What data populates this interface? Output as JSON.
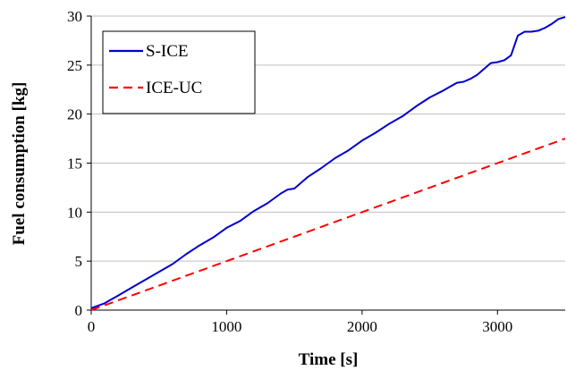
{
  "chart_data": {
    "type": "line",
    "title": "",
    "xlabel": "Time [s]",
    "ylabel": "Fuel consumption [kg]",
    "xlim": [
      0,
      3500
    ],
    "ylim": [
      0,
      30
    ],
    "xticks": [
      0,
      1000,
      2000,
      3000
    ],
    "yticks": [
      0,
      5,
      10,
      15,
      20,
      25,
      30
    ],
    "grid": "horizontal",
    "legend_position": "top-left",
    "series": [
      {
        "name": "S-ICE",
        "color": "#0000cc",
        "style": "solid",
        "x": [
          0,
          100,
          150,
          200,
          300,
          400,
          500,
          600,
          700,
          800,
          900,
          1000,
          1100,
          1200,
          1300,
          1400,
          1450,
          1500,
          1600,
          1700,
          1800,
          1900,
          2000,
          2100,
          2200,
          2300,
          2400,
          2500,
          2600,
          2700,
          2750,
          2800,
          2850,
          2900,
          2950,
          3000,
          3050,
          3100,
          3150,
          3200,
          3250,
          3300,
          3350,
          3400,
          3450,
          3500
        ],
        "y": [
          0.2,
          0.7,
          1.1,
          1.5,
          2.3,
          3.1,
          3.9,
          4.7,
          5.7,
          6.6,
          7.4,
          8.4,
          9.1,
          10.1,
          10.9,
          11.9,
          12.3,
          12.4,
          13.6,
          14.5,
          15.5,
          16.3,
          17.3,
          18.1,
          19.0,
          19.8,
          20.8,
          21.7,
          22.4,
          23.2,
          23.3,
          23.6,
          24.0,
          24.6,
          25.2,
          25.3,
          25.5,
          26.0,
          28.0,
          28.4,
          28.4,
          28.5,
          28.8,
          29.2,
          29.7,
          29.9
        ]
      },
      {
        "name": "ICE-UC",
        "color": "#ff0000",
        "style": "dashed",
        "x": [
          0,
          3500
        ],
        "y": [
          0,
          17.5
        ]
      }
    ]
  }
}
